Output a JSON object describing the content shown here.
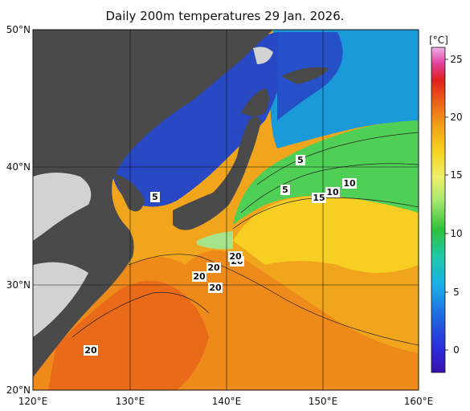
{
  "title": "Daily 200m temperatures 29 Jan. 2026.",
  "colorbar": {
    "unit": "[°C]",
    "ticks": [
      "0",
      "5",
      "10",
      "15",
      "20",
      "25"
    ]
  },
  "map": {
    "lon_ticks": [
      "120°E",
      "130°E",
      "140°E",
      "150°E",
      "160°E"
    ],
    "lat_ticks": [
      "50°N",
      "40°N",
      "30°N",
      "20°N"
    ],
    "contour_labels": [
      "5",
      "5",
      "5",
      "10",
      "10",
      "15",
      "20",
      "20",
      "20",
      "20",
      "20",
      "20"
    ]
  },
  "colors": {
    "land": "#4a4a4a",
    "land_light": "#d2d2d2",
    "cold": "#2a3fc0",
    "warm": "#f2b21a",
    "hot": "#e8571b"
  }
}
